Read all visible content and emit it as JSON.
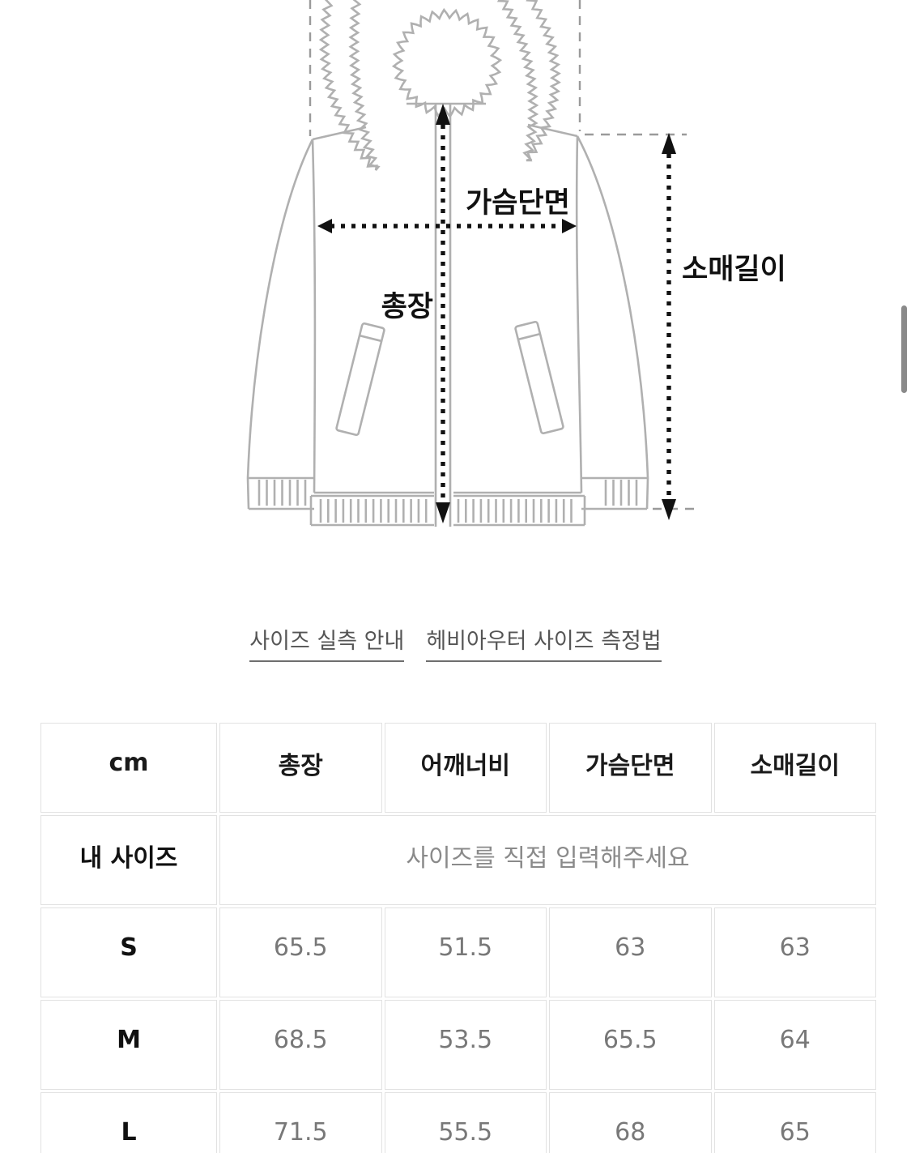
{
  "diagram": {
    "labels": {
      "chest": "가슴단면",
      "length": "총장",
      "sleeve": "소매길이"
    }
  },
  "links": [
    {
      "label": "사이즈 실측 안내"
    },
    {
      "label": "헤비아우터 사이즈 측정법"
    }
  ],
  "size_table": {
    "unit_header": "cm",
    "columns": [
      "총장",
      "어깨너비",
      "가슴단면",
      "소매길이"
    ],
    "my_size_row": {
      "label": "내 사이즈",
      "placeholder": "사이즈를 직접 입력해주세요"
    },
    "rows": [
      {
        "size": "S",
        "values": [
          "65.5",
          "51.5",
          "63",
          "63"
        ]
      },
      {
        "size": "M",
        "values": [
          "68.5",
          "53.5",
          "65.5",
          "64"
        ]
      },
      {
        "size": "L",
        "values": [
          "71.5",
          "55.5",
          "68",
          "65"
        ]
      }
    ]
  },
  "colors": {
    "arrow_black": "#111111",
    "garment_gray": "#b0b0b0",
    "link_text": "#555555",
    "value_gray": "#787878",
    "cell_border": "#e2e2e2",
    "scrollbar": "#8a8a8a"
  }
}
